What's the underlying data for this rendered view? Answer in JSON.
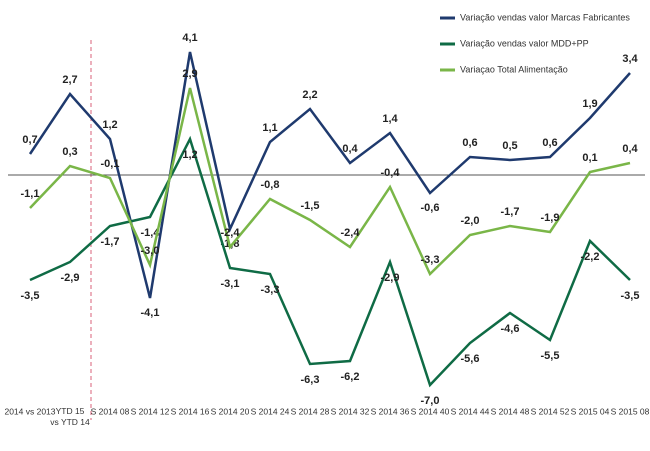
{
  "chart_data": {
    "type": "line",
    "categories": [
      "2014 vs 2013",
      "YTD 15\nvs YTD 14",
      "S 2014 08",
      "S 2014 12",
      "S 2014 16",
      "S 2014 20",
      "S 2014 24",
      "S 2014 28",
      "S 2014 32",
      "S 2014 36",
      "S 2014 40",
      "S 2014 44",
      "S 2014 48",
      "S 2014 52",
      "S 2015 04",
      "S 2015 08"
    ],
    "series": [
      {
        "name": "Variação vendas valor Marcas Fabricantes",
        "color": "#1f3a6e",
        "values": [
          0.7,
          2.7,
          1.2,
          -4.1,
          4.1,
          -1.8,
          1.1,
          2.2,
          0.4,
          1.4,
          -0.6,
          0.6,
          0.5,
          0.6,
          1.9,
          3.4
        ],
        "value_labels": [
          "0,7",
          "2,7",
          "1,2",
          "-4,1",
          "4,1",
          "-1,8",
          "1,1",
          "2,2",
          "0,4",
          "1,4",
          "-0,6",
          "0,6",
          "0,5",
          "0,6",
          "1,9",
          "3,4"
        ]
      },
      {
        "name": "Variação vendas valor MDD+PP",
        "color": "#0f6b45",
        "values": [
          -3.5,
          -2.9,
          -1.7,
          -1.4,
          1.2,
          -3.1,
          -3.3,
          -6.3,
          -6.2,
          -2.9,
          -7.0,
          -5.6,
          -4.6,
          -5.5,
          -2.2,
          -3.5
        ],
        "value_labels": [
          "-3,5",
          "-2,9",
          "-1,7",
          "-1,4",
          "1,2",
          "-3,1",
          "-3,3",
          "-6,3",
          "-6,2",
          "-2,9",
          "-7,0",
          "-5,6",
          "-4,6",
          "-5,5",
          "-2,2",
          "-3,5"
        ]
      },
      {
        "name": "Variaçao Total Alimentação",
        "color": "#7ab648",
        "values": [
          -1.1,
          0.3,
          -0.1,
          -3.0,
          2.9,
          -2.4,
          -0.8,
          -1.5,
          -2.4,
          -0.4,
          -3.3,
          -2.0,
          -1.7,
          -1.9,
          0.1,
          0.4
        ],
        "value_labels": [
          "-1,1",
          "0,3",
          "-0,1",
          "-3,0",
          "2,9",
          "-2,4",
          "-0,8",
          "-1,5",
          "-2,4",
          "-0,4",
          "-3,3",
          "-2,0",
          "-1,7",
          "-1,9",
          "0,1",
          "0,4"
        ]
      }
    ]
  }
}
